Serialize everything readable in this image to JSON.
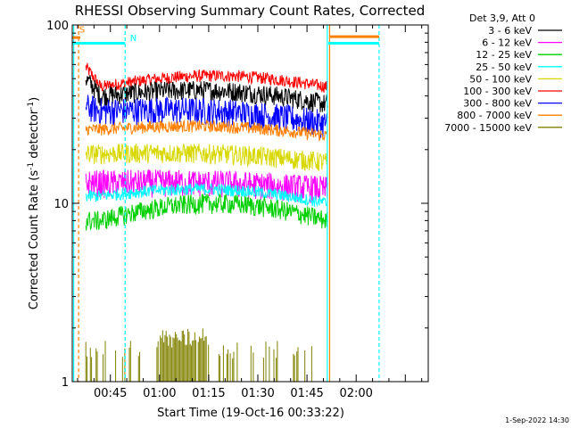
{
  "chart_data": {
    "type": "line",
    "title": "RHESSI Observing Summary Count Rates, Corrected",
    "xlabel": "Start Time (19-Oct-16 00:33:22)",
    "ylabel_main": "Corrected Count Rate (s",
    "ylabel_sup1": "-1",
    "ylabel_mid": " detector",
    "ylabel_sup2": "-1",
    "ylabel_end": ")",
    "yscale": "log",
    "ylim": [
      1,
      100
    ],
    "xlim_minutes": [
      33.37,
      142.0
    ],
    "x_ticks": [
      {
        "minutes": 45,
        "label": "00:45"
      },
      {
        "minutes": 60,
        "label": "01:00"
      },
      {
        "minutes": 75,
        "label": "01:15"
      },
      {
        "minutes": 90,
        "label": "01:30"
      },
      {
        "minutes": 105,
        "label": "01:45"
      },
      {
        "minutes": 120,
        "label": "02:00"
      }
    ],
    "y_ticks": [
      {
        "value": 1,
        "label": "1"
      },
      {
        "value": 10,
        "label": "10"
      },
      {
        "value": 100,
        "label": "100"
      }
    ],
    "legend_header": "Det 3,9, Att 0",
    "legend": [
      {
        "label": "3 - 6 keV",
        "color": "#000000"
      },
      {
        "label": "6 - 12 keV",
        "color": "#ff00ff"
      },
      {
        "label": "12 - 25 keV",
        "color": "#00d000"
      },
      {
        "label": "25 - 50 keV",
        "color": "#00ffff"
      },
      {
        "label": "50 - 100 keV",
        "color": "#d8d800"
      },
      {
        "label": "100 - 300 keV",
        "color": "#ff0000"
      },
      {
        "label": "300 - 800 keV",
        "color": "#0000ff"
      },
      {
        "label": "800 - 7000 keV",
        "color": "#ff8000"
      },
      {
        "label": "7000 - 15000 keV",
        "color": "#808000"
      }
    ],
    "data_range_minutes": [
      37.5,
      111.3
    ],
    "series": [
      {
        "name": "100 - 300 keV",
        "color": "#ff0000",
        "level_start": 45,
        "level_mid": 52,
        "level_end": 45,
        "peak_start": 58
      },
      {
        "name": "3 - 6 keV",
        "color": "#000000",
        "level_start": 40,
        "level_mid": 43,
        "level_end": 36,
        "peak_start": 50
      },
      {
        "name": "300 - 800 keV",
        "color": "#0000ff",
        "level_start": 33,
        "level_mid": 33,
        "level_end": 28,
        "peak_start": 35
      },
      {
        "name": "800 - 7000 keV",
        "color": "#ff8000",
        "level_start": 26,
        "level_mid": 27,
        "level_end": 24,
        "peak_start": 26
      },
      {
        "name": "50 - 100 keV",
        "color": "#d8d800",
        "level_start": 19,
        "level_mid": 19,
        "level_end": 17,
        "peak_start": 19
      },
      {
        "name": "6 - 12 keV",
        "color": "#ff00ff",
        "level_start": 13,
        "level_mid": 13,
        "level_end": 12,
        "peak_start": 13
      },
      {
        "name": "25 - 50 keV",
        "color": "#00ffff",
        "level_start": 11,
        "level_mid": 12,
        "level_end": 10,
        "peak_start": 11
      },
      {
        "name": "12 - 25 keV",
        "color": "#00d000",
        "level_start": 8,
        "level_mid": 10,
        "level_end": 8,
        "peak_start": 8
      },
      {
        "name": "7000 - 15000 keV",
        "color": "#808000",
        "level_start": 1,
        "level_mid": 2,
        "level_end": 1,
        "peak_start": 1
      }
    ],
    "annotations": [
      {
        "label": "S",
        "color": "#ff8000",
        "minutes": 35.5,
        "value": 95
      },
      {
        "label": "N",
        "color": "#00ffff",
        "minutes": 51.0,
        "value": 85
      }
    ],
    "segments": [
      {
        "name": "saa-bar",
        "color": "#ff8000",
        "from": 33.37,
        "to": 35.8,
        "value": 85
      },
      {
        "name": "night-bar-1",
        "color": "#00ffff",
        "from": 33.37,
        "to": 49.5,
        "value": 79
      },
      {
        "name": "saa-bar-2",
        "color": "#ff8000",
        "from": 112.0,
        "to": 127.0,
        "value": 86
      },
      {
        "name": "night-bar-2",
        "color": "#00ffff",
        "from": 111.5,
        "to": 127.0,
        "value": 79
      }
    ],
    "vertical_markers": [
      {
        "name": "night-start-line-1",
        "color": "#00ffff",
        "minutes": 33.8,
        "dashed": false
      },
      {
        "name": "saa-end-line-1",
        "color": "#ff8000",
        "minutes": 35.3,
        "dashed": true
      },
      {
        "name": "night-end-line-1",
        "color": "#00ffff",
        "minutes": 49.5,
        "dashed": true
      },
      {
        "name": "night-start-line-2",
        "color": "#00ffff",
        "minutes": 111.2,
        "dashed": false
      },
      {
        "name": "saa-start-line-2",
        "color": "#ff8000",
        "minutes": 111.9,
        "dashed": false
      },
      {
        "name": "night-end-line-2",
        "color": "#00ffff",
        "minutes": 127.0,
        "dashed": true
      }
    ]
  },
  "footer_timestamp": "1-Sep-2022 14:30"
}
